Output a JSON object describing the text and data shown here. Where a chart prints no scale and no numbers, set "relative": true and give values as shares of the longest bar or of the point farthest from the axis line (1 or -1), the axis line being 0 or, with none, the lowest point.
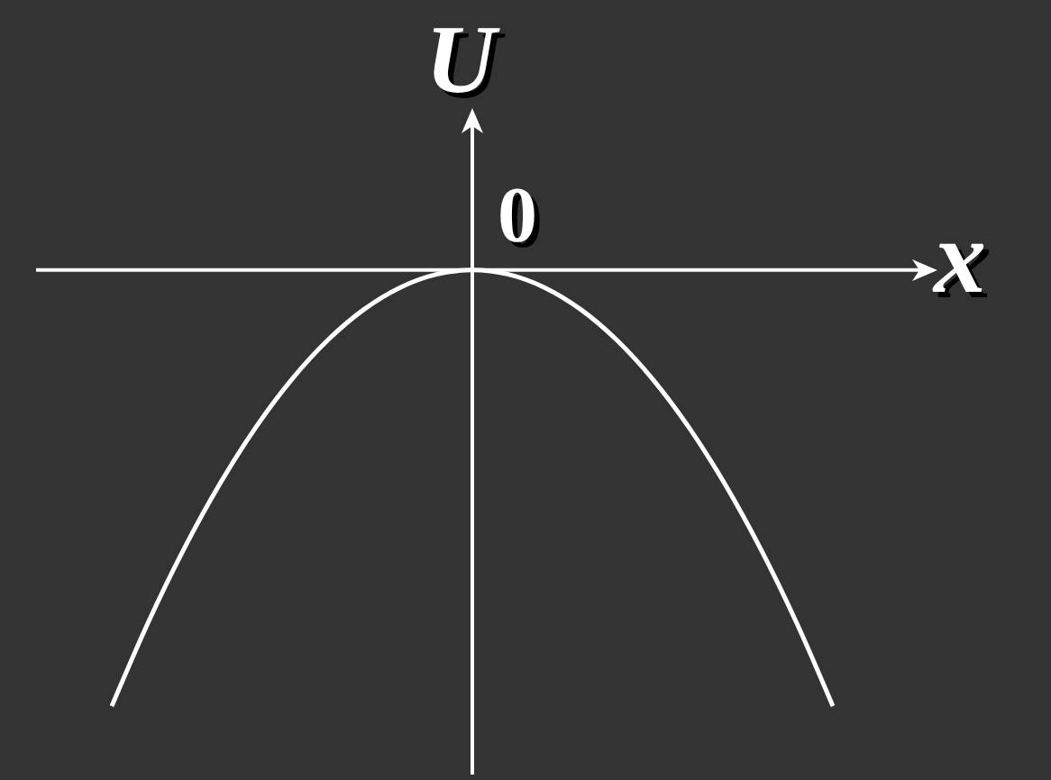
{
  "chart_data": {
    "type": "line",
    "relative": true,
    "xlabel": "x",
    "ylabel": "U",
    "annotations": [
      "0"
    ],
    "marker": "none",
    "categories": [
      null,
      null,
      null,
      null,
      null,
      null,
      null,
      null,
      null,
      null,
      null,
      null,
      null,
      null,
      null,
      null,
      null,
      null,
      null,
      null,
      null
    ],
    "series": [
      {
        "color": "#ffffff",
        "values": [
          -1,
          -0.81,
          -0.64,
          -0.49,
          -0.36,
          -0.25,
          -0.16,
          -0.09,
          -0.04,
          -0.01,
          0,
          -0.01,
          -0.04,
          -0.09,
          -0.16,
          -0.25,
          -0.36,
          -0.49,
          -0.64,
          -0.81,
          -1
        ]
      }
    ]
  }
}
